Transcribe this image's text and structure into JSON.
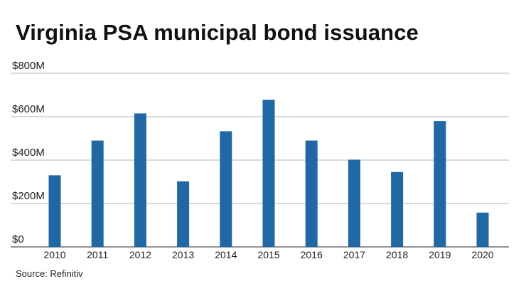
{
  "title": "Virginia PSA municipal bond issuance",
  "source": "Source: Refinitiv",
  "colors": {
    "bar": "#1f67a5",
    "grid": "#9a9a9a",
    "text": "#222222"
  },
  "chart_data": {
    "type": "bar",
    "title": "Virginia PSA municipal bond issuance",
    "categories": [
      "2010",
      "2011",
      "2012",
      "2013",
      "2014",
      "2015",
      "2016",
      "2017",
      "2018",
      "2019",
      "2020"
    ],
    "series": [
      {
        "values": [
          330,
          490,
          615,
          302,
          533,
          678,
          490,
          402,
          345,
          580,
          158
        ]
      }
    ],
    "unit": "millions of dollars",
    "ylim": [
      0,
      800
    ],
    "yticks": [
      0,
      200,
      400,
      600,
      800
    ],
    "ytick_labels": [
      "$0",
      "$200M",
      "$400M",
      "$600M",
      "$800M"
    ],
    "xlabel": "",
    "ylabel": "",
    "grid": true,
    "legend": "none"
  }
}
